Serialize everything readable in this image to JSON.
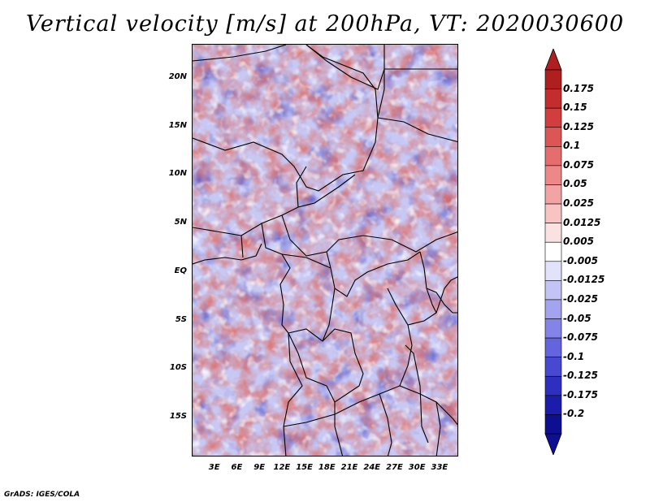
{
  "title": "Vertical velocity [m/s] at 200hPa, VT: 2020030600",
  "credit": "GrADS: IGES/COLA",
  "map": {
    "lat_range": [
      -19,
      23.5
    ],
    "lon_range": [
      0,
      35.5
    ],
    "lat_labels": [
      {
        "lat": 20,
        "label": "20N"
      },
      {
        "lat": 15,
        "label": "15N"
      },
      {
        "lat": 10,
        "label": "10N"
      },
      {
        "lat": 5,
        "label": "5N"
      },
      {
        "lat": 0,
        "label": "EQ"
      },
      {
        "lat": -5,
        "label": "5S"
      },
      {
        "lat": -10,
        "label": "10S"
      },
      {
        "lat": -15,
        "label": "15S"
      }
    ],
    "lon_labels": [
      {
        "lon": 3,
        "label": "3E"
      },
      {
        "lon": 6,
        "label": "6E"
      },
      {
        "lon": 9,
        "label": "9E"
      },
      {
        "lon": 12,
        "label": "12E"
      },
      {
        "lon": 15,
        "label": "15E"
      },
      {
        "lon": 18,
        "label": "18E"
      },
      {
        "lon": 21,
        "label": "21E"
      },
      {
        "lon": 24,
        "label": "24E"
      },
      {
        "lon": 27,
        "label": "27E"
      },
      {
        "lon": 30,
        "label": "30E"
      },
      {
        "lon": 33,
        "label": "33E"
      }
    ]
  },
  "colorbar": {
    "labels": [
      "0.175",
      "0.15",
      "0.125",
      "0.1",
      "0.075",
      "0.05",
      "0.025",
      "0.0125",
      "0.005",
      "-0.005",
      "-0.0125",
      "-0.025",
      "-0.05",
      "-0.075",
      "-0.1",
      "-0.125",
      "-0.175",
      "-0.2"
    ],
    "colors": [
      "#b01f1f",
      "#c32d2d",
      "#d23e3e",
      "#dd5656",
      "#e66d6d",
      "#ec8888",
      "#f2a3a3",
      "#f7c3c3",
      "#fbe2e2",
      "#ffffff",
      "#e2e2fb",
      "#c3c3f5",
      "#a3a3ef",
      "#8484e8",
      "#6464df",
      "#4848d2",
      "#2e2ec0",
      "#1c1caa",
      "#0e0e90"
    ]
  }
}
